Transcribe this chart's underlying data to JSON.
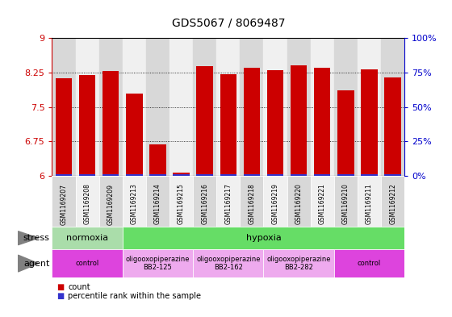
{
  "title": "GDS5067 / 8069487",
  "samples": [
    "GSM1169207",
    "GSM1169208",
    "GSM1169209",
    "GSM1169213",
    "GSM1169214",
    "GSM1169215",
    "GSM1169216",
    "GSM1169217",
    "GSM1169218",
    "GSM1169219",
    "GSM1169220",
    "GSM1169221",
    "GSM1169210",
    "GSM1169211",
    "GSM1169212"
  ],
  "red_values": [
    8.13,
    8.19,
    8.28,
    7.8,
    6.68,
    6.08,
    8.38,
    8.22,
    8.35,
    8.3,
    8.4,
    8.35,
    7.87,
    8.32,
    8.15
  ],
  "blue_values": [
    0.04,
    0.04,
    0.04,
    0.03,
    0.03,
    0.03,
    0.04,
    0.04,
    0.04,
    0.03,
    0.04,
    0.04,
    0.04,
    0.04,
    0.03
  ],
  "ymin": 6.0,
  "ymax": 9.0,
  "yticks": [
    6.0,
    6.75,
    7.5,
    8.25,
    9.0
  ],
  "ytick_labels": [
    "6",
    "6.75",
    "7.5",
    "8.25",
    "9"
  ],
  "right_yticks": [
    0,
    25,
    50,
    75,
    100
  ],
  "bar_color": "#cc0000",
  "blue_color": "#3333cc",
  "bg_color": "#ffffff",
  "col_bg_even": "#d8d8d8",
  "col_bg_odd": "#f0f0f0",
  "stress_row": [
    {
      "label": "normoxia",
      "start": 0,
      "end": 3,
      "color": "#aaddaa"
    },
    {
      "label": "hypoxia",
      "start": 3,
      "end": 15,
      "color": "#66dd66"
    }
  ],
  "agent_row": [
    {
      "label": "control",
      "start": 0,
      "end": 3,
      "color": "#dd44dd"
    },
    {
      "label": "oligooxopiperazine\nBB2-125",
      "start": 3,
      "end": 6,
      "color": "#eeaaee"
    },
    {
      "label": "oligooxopiperazine\nBB2-162",
      "start": 6,
      "end": 9,
      "color": "#eeaaee"
    },
    {
      "label": "oligooxopiperazine\nBB2-282",
      "start": 9,
      "end": 12,
      "color": "#eeaaee"
    },
    {
      "label": "control",
      "start": 12,
      "end": 15,
      "color": "#dd44dd"
    }
  ],
  "legend_items": [
    {
      "label": "count",
      "color": "#cc0000"
    },
    {
      "label": "percentile rank within the sample",
      "color": "#3333cc"
    }
  ],
  "tick_color_left": "#cc0000",
  "tick_color_right": "#0000cc"
}
